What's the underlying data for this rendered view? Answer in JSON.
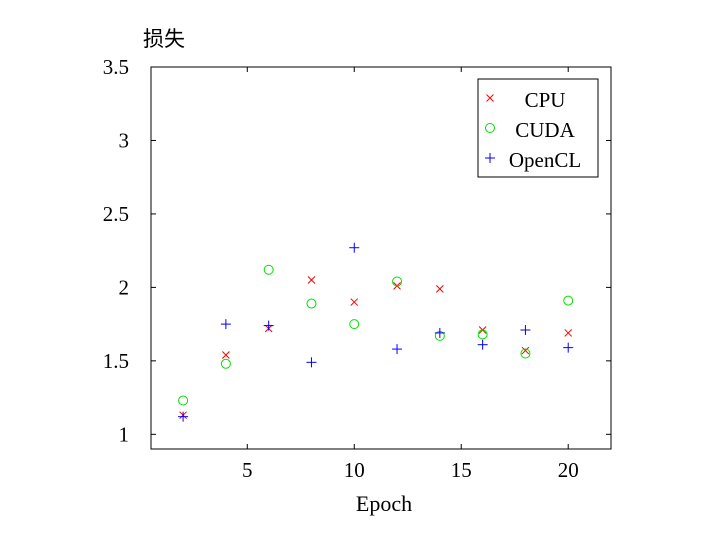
{
  "chart_data": {
    "type": "scatter",
    "xlabel": "Epoch",
    "ylabel": "损失",
    "xlim": [
      0.5,
      22
    ],
    "ylim": [
      0.9,
      3.5
    ],
    "xticks": [
      5,
      10,
      15,
      20
    ],
    "xtick_labels": [
      "5",
      "10",
      "15",
      "20"
    ],
    "yticks": [
      1,
      1.5,
      2,
      2.5,
      3,
      3.5
    ],
    "ytick_labels": [
      "1",
      "1.5",
      "2",
      "2.5",
      "3",
      "3.5"
    ],
    "grid": false,
    "legend_position": "top-right",
    "series": [
      {
        "name": "CPU",
        "marker": "x",
        "color": "#ff0000",
        "x": [
          2,
          4,
          6,
          8,
          10,
          12,
          14,
          16,
          18,
          20
        ],
        "y": [
          1.13,
          1.54,
          1.72,
          2.05,
          1.9,
          2.01,
          1.99,
          1.71,
          1.57,
          1.69
        ]
      },
      {
        "name": "CUDA",
        "marker": "o",
        "color": "#00e000",
        "x": [
          2,
          4,
          6,
          8,
          10,
          12,
          14,
          16,
          18,
          20
        ],
        "y": [
          1.23,
          1.48,
          2.12,
          1.89,
          1.75,
          2.04,
          1.67,
          1.68,
          1.55,
          1.91
        ]
      },
      {
        "name": "OpenCL",
        "marker": "+",
        "color": "#0000ff",
        "x": [
          2,
          4,
          6,
          8,
          10,
          12,
          14,
          16,
          18,
          20
        ],
        "y": [
          1.12,
          1.75,
          1.74,
          1.49,
          2.27,
          1.58,
          1.69,
          1.61,
          1.71,
          1.59
        ]
      }
    ]
  }
}
